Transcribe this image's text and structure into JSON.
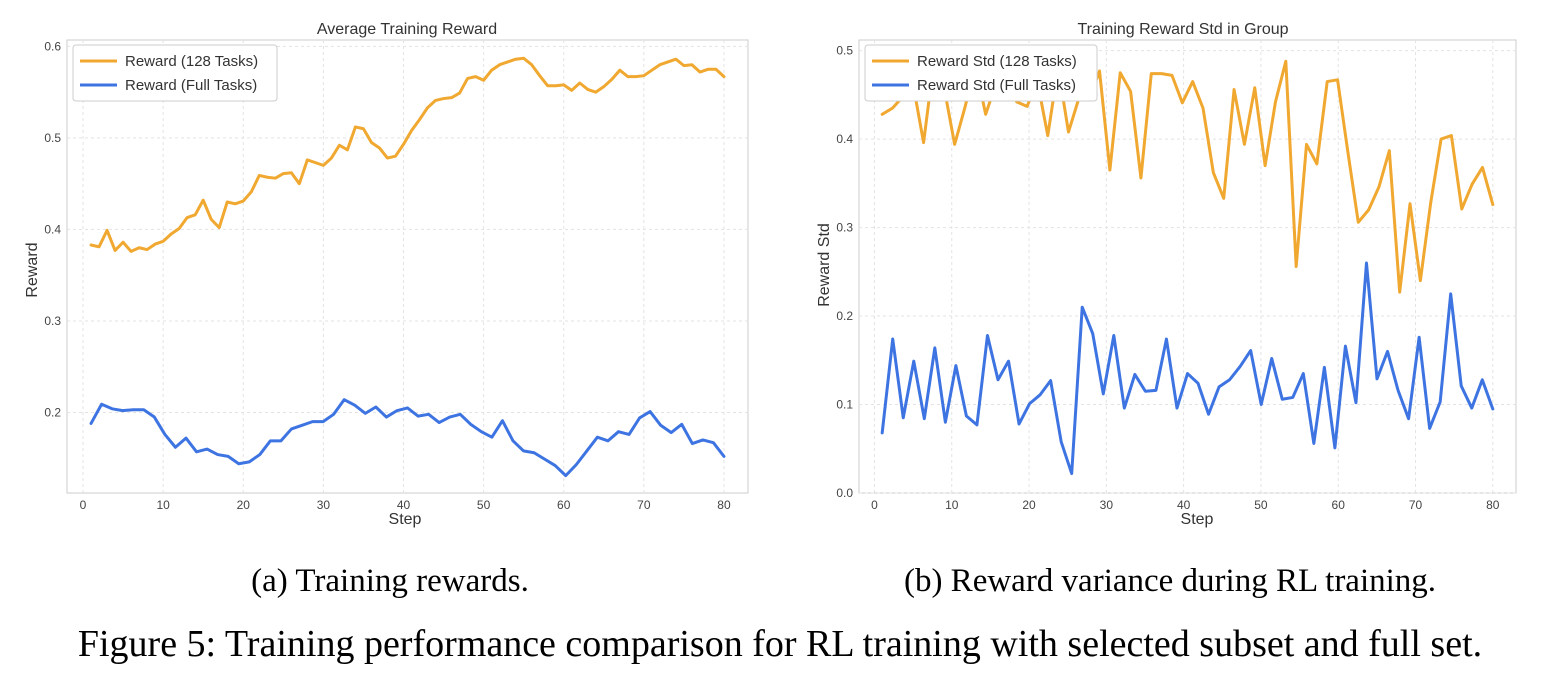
{
  "figure_caption": "Figure 5: Training performance comparison for RL training with selected subset and full set.",
  "colors": {
    "orange": "#F0A830",
    "blue": "#3D74E2",
    "grid": "#E3E3E3",
    "axis": "#CCCCCC"
  },
  "chart_data": [
    {
      "type": "line",
      "title": "Average Training Reward",
      "xlabel": "Step",
      "ylabel": "Reward",
      "subcaption": "(a) Training rewards.",
      "xlim": [
        -2,
        83
      ],
      "ylim": [
        0.112,
        0.607
      ],
      "xticks": [
        0,
        10,
        20,
        30,
        40,
        50,
        60,
        70,
        80
      ],
      "yticks": [
        0.2,
        0.3,
        0.4,
        0.5,
        0.6
      ],
      "ytick_labels": [
        "0.2",
        "0.3",
        "0.4",
        "0.5",
        "0.6"
      ],
      "grid": true,
      "legend": "upper-left",
      "series": [
        {
          "name": "Reward (128 Tasks)",
          "color": "#F0A830",
          "values": [
            0.383,
            0.381,
            0.399,
            0.377,
            0.386,
            0.376,
            0.38,
            0.378,
            0.384,
            0.387,
            0.395,
            0.401,
            0.413,
            0.416,
            0.432,
            0.411,
            0.402,
            0.43,
            0.428,
            0.431,
            0.441,
            0.459,
            0.457,
            0.456,
            0.461,
            0.462,
            0.45,
            0.476,
            0.473,
            0.47,
            0.478,
            0.492,
            0.487,
            0.512,
            0.51,
            0.495,
            0.489,
            0.478,
            0.48,
            0.493,
            0.508,
            0.52,
            0.533,
            0.541,
            0.543,
            0.544,
            0.549,
            0.565,
            0.567,
            0.563,
            0.574,
            0.58,
            0.583,
            0.586,
            0.587,
            0.58,
            0.568,
            0.557,
            0.557,
            0.558,
            0.552,
            0.56,
            0.553,
            0.55,
            0.556,
            0.564,
            0.574,
            0.567,
            0.567,
            0.568,
            0.574,
            0.58,
            0.583,
            0.586,
            0.579,
            0.58,
            0.572,
            0.575,
            0.575,
            0.567
          ]
        },
        {
          "name": "Reward (Full Tasks)",
          "color": "#3D74E2",
          "values": [
            0.188,
            0.209,
            0.204,
            0.202,
            0.203,
            0.203,
            0.195,
            0.176,
            0.162,
            0.172,
            0.157,
            0.16,
            0.154,
            0.152,
            0.144,
            0.146,
            0.154,
            0.169,
            0.169,
            0.182,
            0.186,
            0.19,
            0.19,
            0.198,
            0.214,
            0.208,
            0.199,
            0.206,
            0.195,
            0.202,
            0.205,
            0.196,
            0.198,
            0.189,
            0.195,
            0.198,
            0.187,
            0.179,
            0.173,
            0.191,
            0.169,
            0.158,
            0.156,
            0.149,
            0.142,
            0.131,
            0.143,
            0.158,
            0.173,
            0.169,
            0.179,
            0.176,
            0.194,
            0.201,
            0.186,
            0.178,
            0.187,
            0.166,
            0.17,
            0.167,
            0.152
          ]
        }
      ]
    },
    {
      "type": "line",
      "title": "Training Reward Std in Group",
      "xlabel": "Step",
      "ylabel": "Reward Std",
      "subcaption": "(b) Reward variance during RL training.",
      "xlim": [
        -2,
        83
      ],
      "ylim": [
        0,
        0.512
      ],
      "xticks": [
        0,
        10,
        20,
        30,
        40,
        50,
        60,
        70,
        80
      ],
      "yticks": [
        0.0,
        0.1,
        0.2,
        0.3,
        0.4,
        0.5
      ],
      "ytick_labels": [
        "0.0",
        "0.1",
        "0.2",
        "0.3",
        "0.4",
        "0.5"
      ],
      "grid": true,
      "legend": "upper-left",
      "series": [
        {
          "name": "Reward Std (128 Tasks)",
          "color": "#F0A830",
          "values": [
            0.428,
            0.435,
            0.448,
            0.461,
            0.396,
            0.488,
            0.457,
            0.394,
            0.436,
            0.483,
            0.428,
            0.463,
            0.483,
            0.442,
            0.437,
            0.465,
            0.404,
            0.481,
            0.408,
            0.446,
            0.445,
            0.477,
            0.365,
            0.475,
            0.454,
            0.356,
            0.474,
            0.474,
            0.472,
            0.441,
            0.465,
            0.435,
            0.362,
            0.333,
            0.456,
            0.394,
            0.458,
            0.37,
            0.442,
            0.488,
            0.256,
            0.394,
            0.372,
            0.465,
            0.467,
            0.385,
            0.306,
            0.32,
            0.346,
            0.387,
            0.227,
            0.327,
            0.24,
            0.328,
            0.4,
            0.404,
            0.321,
            0.349,
            0.368,
            0.326
          ]
        },
        {
          "name": "Reward Std (Full Tasks)",
          "color": "#3D74E2",
          "values": [
            0.068,
            0.174,
            0.085,
            0.149,
            0.084,
            0.164,
            0.08,
            0.144,
            0.087,
            0.077,
            0.178,
            0.128,
            0.149,
            0.078,
            0.101,
            0.111,
            0.127,
            0.058,
            0.022,
            0.21,
            0.18,
            0.112,
            0.178,
            0.096,
            0.134,
            0.115,
            0.116,
            0.174,
            0.096,
            0.135,
            0.124,
            0.089,
            0.12,
            0.128,
            0.143,
            0.161,
            0.1,
            0.152,
            0.106,
            0.108,
            0.135,
            0.056,
            0.142,
            0.051,
            0.166,
            0.102,
            0.26,
            0.129,
            0.16,
            0.116,
            0.084,
            0.176,
            0.073,
            0.103,
            0.225,
            0.121,
            0.096,
            0.128,
            0.095
          ]
        }
      ]
    }
  ]
}
